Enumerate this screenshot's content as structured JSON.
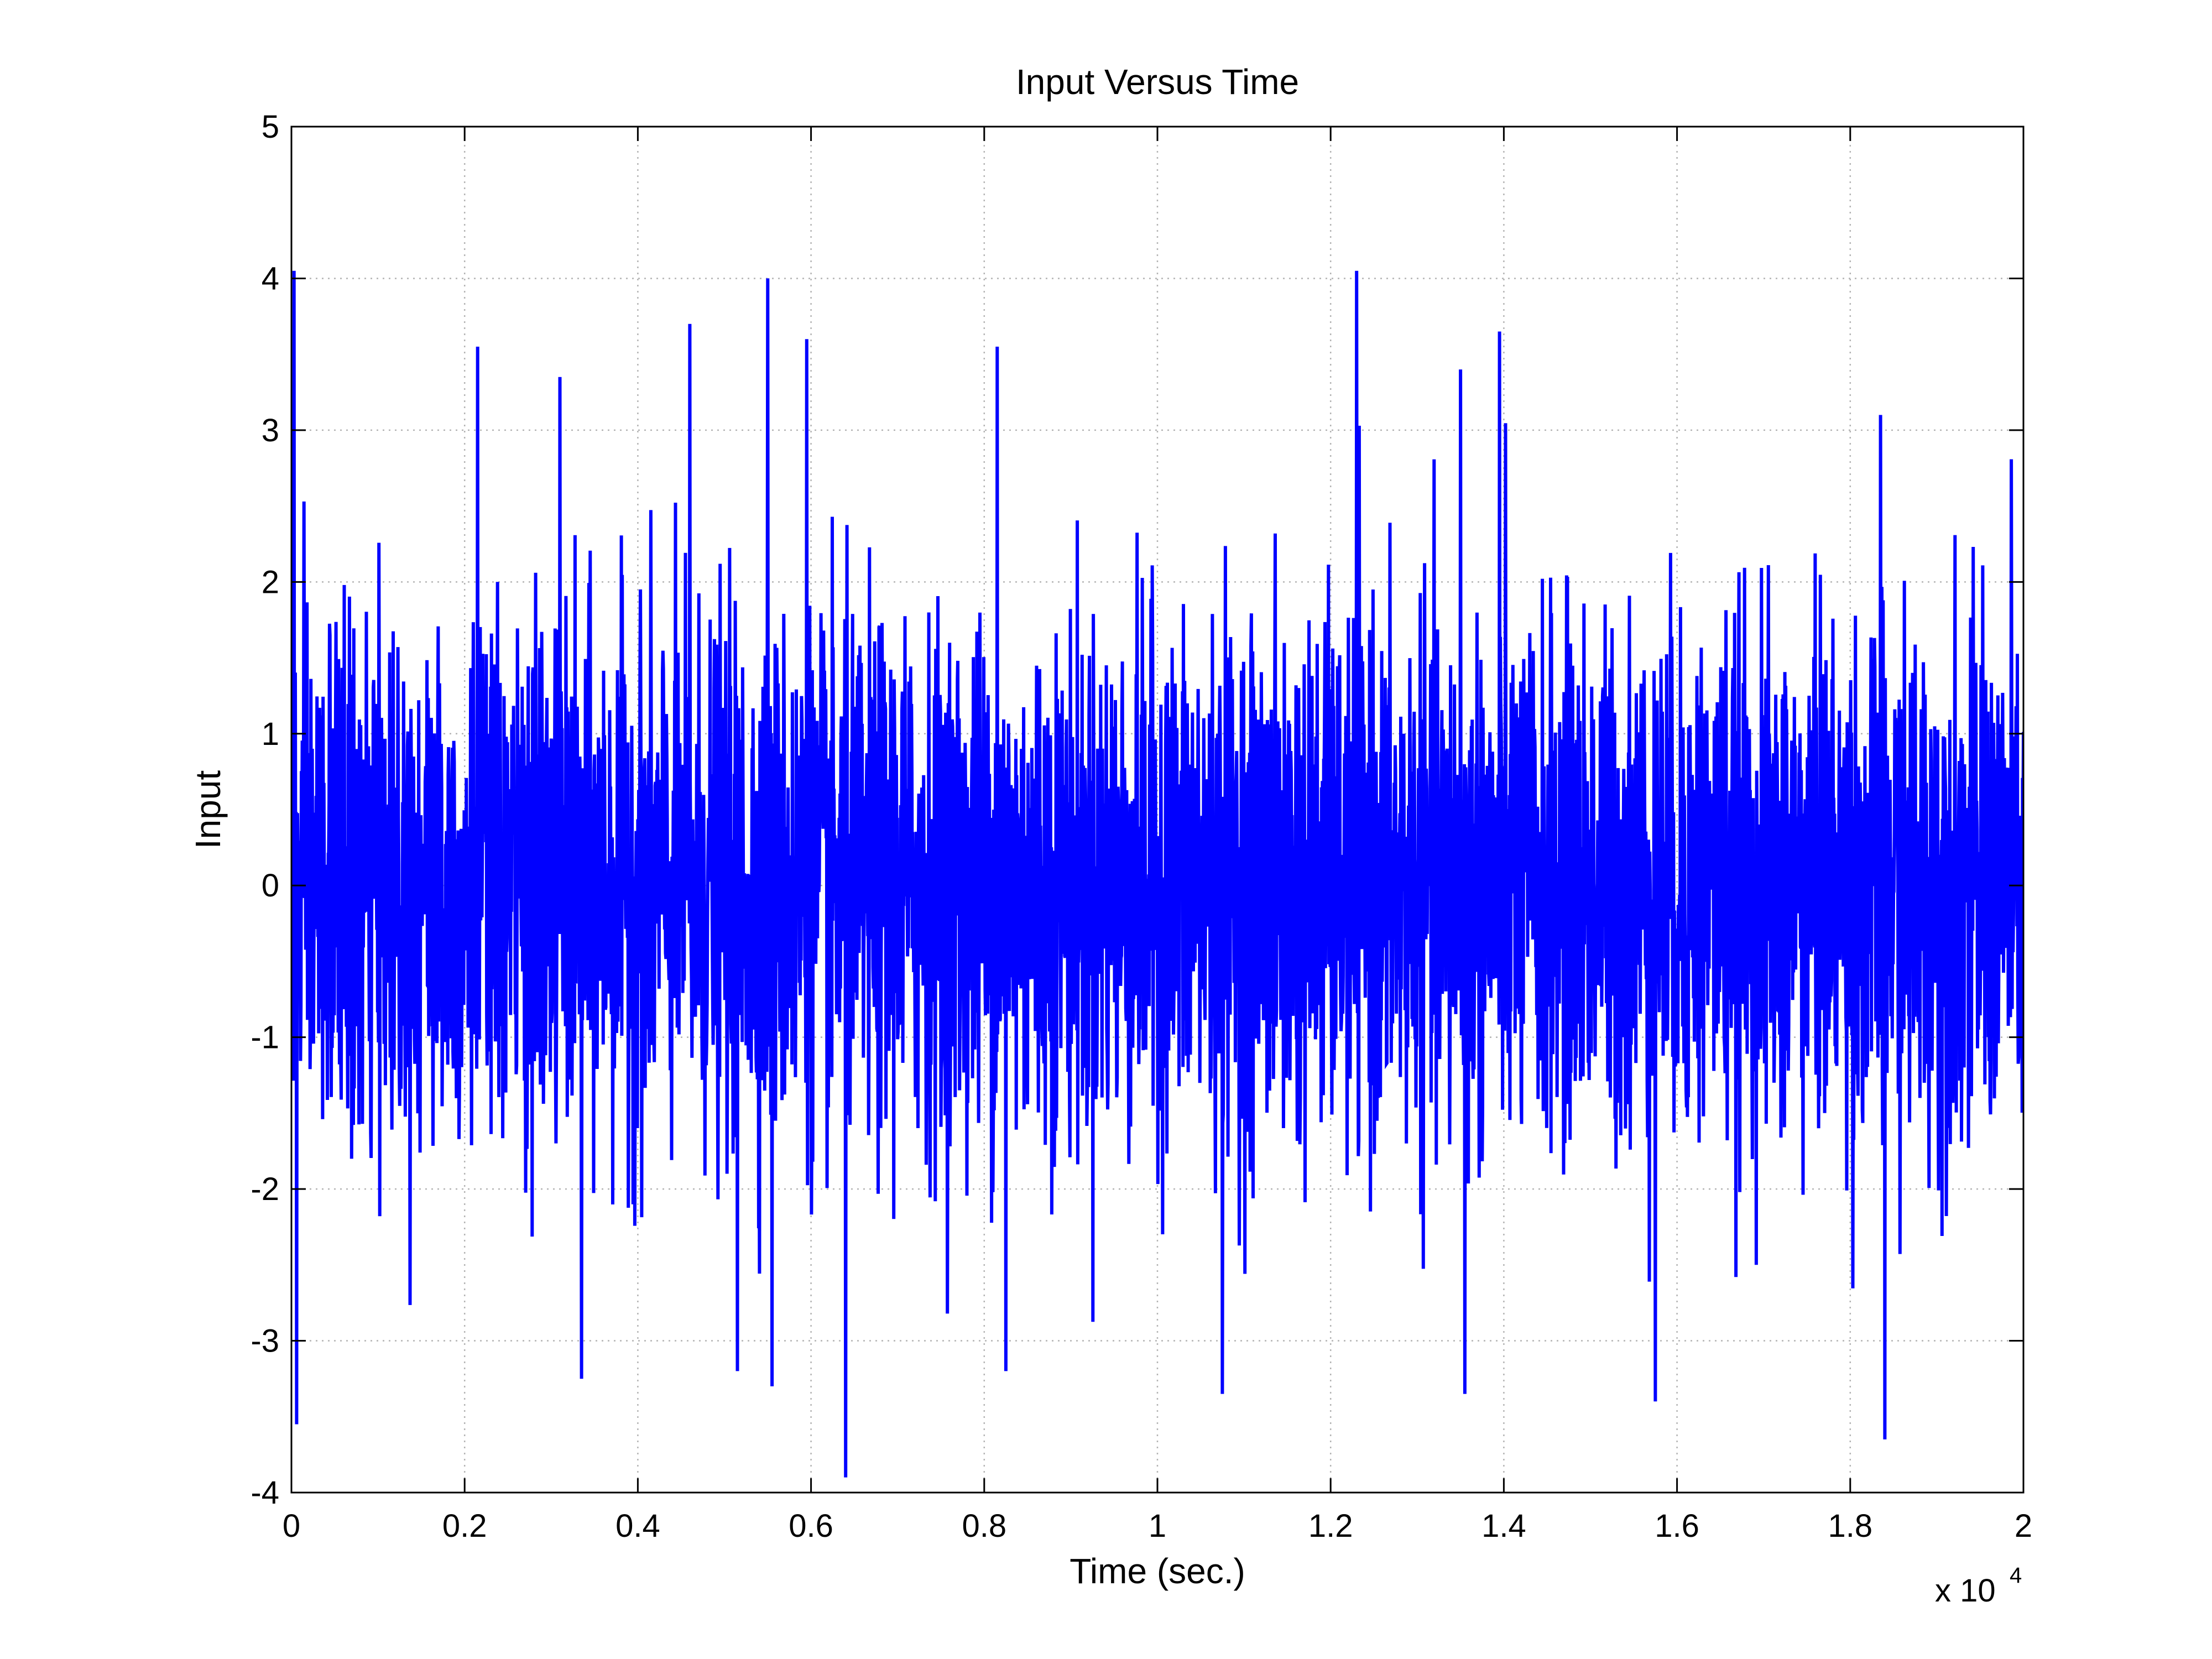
{
  "chart_data": {
    "type": "line",
    "title": "Input Versus Time",
    "xlabel": "Time (sec.)",
    "ylabel": "Input",
    "x_multiplier_base": "x 10",
    "x_multiplier_exponent": "4",
    "xlim": [
      0,
      20000
    ],
    "ylim": [
      -4,
      5
    ],
    "x_ticks": [
      0,
      2000,
      4000,
      6000,
      8000,
      10000,
      12000,
      14000,
      16000,
      18000,
      20000
    ],
    "x_tick_labels": [
      "0",
      "0.2",
      "0.4",
      "0.6",
      "0.8",
      "1",
      "1.2",
      "1.4",
      "1.6",
      "1.8",
      "2"
    ],
    "y_ticks": [
      -4,
      -3,
      -2,
      -1,
      0,
      1,
      2,
      3,
      4,
      5
    ],
    "y_tick_labels": [
      "-4",
      "-3",
      "-2",
      "-1",
      "0",
      "1",
      "2",
      "3",
      "4",
      "5"
    ],
    "grid": true,
    "legend": "none",
    "series": [
      {
        "color": "#0000ff",
        "description_of_signal": "dense random noise, zero mean, approx. unit variance, sampled every 1 sec from 0 to 20000",
        "extrema": [
          {
            "x": 30,
            "y": 4.05
          },
          {
            "x": 60,
            "y": -3.55
          },
          {
            "x": 2150,
            "y": 3.55
          },
          {
            "x": 3100,
            "y": 3.35
          },
          {
            "x": 3350,
            "y": -3.25
          },
          {
            "x": 4600,
            "y": 3.7
          },
          {
            "x": 5150,
            "y": -3.2
          },
          {
            "x": 5500,
            "y": 4.0
          },
          {
            "x": 5550,
            "y": -3.3
          },
          {
            "x": 5950,
            "y": 3.6
          },
          {
            "x": 6400,
            "y": -3.9
          },
          {
            "x": 8150,
            "y": 3.55
          },
          {
            "x": 8250,
            "y": -3.2
          },
          {
            "x": 10750,
            "y": -3.35
          },
          {
            "x": 12300,
            "y": 4.05
          },
          {
            "x": 13550,
            "y": -3.35
          },
          {
            "x": 13500,
            "y": 3.4
          },
          {
            "x": 13950,
            "y": 3.65
          },
          {
            "x": 15750,
            "y": -3.4
          },
          {
            "x": 18400,
            "y": -3.65
          },
          {
            "x": 18350,
            "y": 3.1
          }
        ]
      }
    ]
  }
}
